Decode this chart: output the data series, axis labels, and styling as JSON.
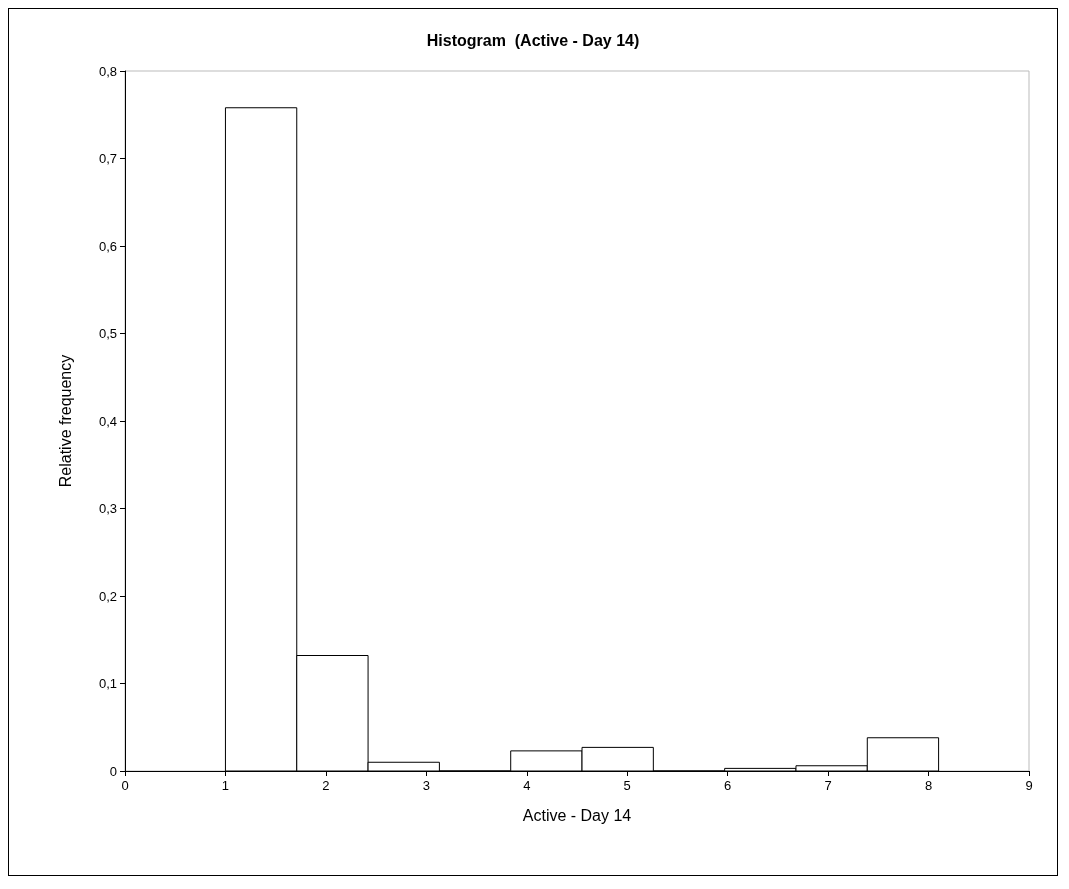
{
  "chart_data": {
    "type": "histogram",
    "title": "Histogram  (Active - Day 14)",
    "xlabel": "Active - Day 14",
    "ylabel": "Relative frequency",
    "bins": [
      1,
      1.71,
      2.42,
      3.13,
      3.84,
      4.55,
      5.26,
      5.97,
      6.68,
      7.39,
      8.1
    ],
    "values": [
      0.758,
      0.132,
      0.01,
      0,
      0.023,
      0.027,
      0,
      0.003,
      0.006,
      0.038
    ],
    "color": "#ffffff",
    "xlim": [
      0,
      9
    ],
    "xticks": [
      0,
      1,
      2,
      3,
      4,
      5,
      6,
      7,
      8,
      9
    ],
    "ylim": [
      0,
      0.8
    ],
    "yticks": [
      0,
      {
        "value": 0.1,
        "label": "0,1"
      },
      {
        "value": 0.2,
        "label": "0,2"
      },
      {
        "value": 0.3,
        "label": "0,3"
      },
      {
        "value": 0.4,
        "label": "0,4"
      },
      {
        "value": 0.5,
        "label": "0,5"
      },
      {
        "value": 0.6,
        "label": "0,6"
      },
      {
        "value": 0.7,
        "label": "0,7"
      },
      {
        "value": 0.8,
        "label": "0,8"
      }
    ],
    "grid": false
  }
}
